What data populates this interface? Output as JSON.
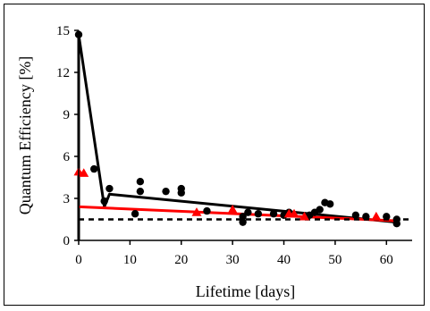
{
  "chart_data": {
    "type": "scatter",
    "xlabel": "Lifetime [days]",
    "ylabel": "Quantum Efficiency [%]",
    "xlim": [
      0,
      65
    ],
    "ylim": [
      0,
      15
    ],
    "xticks": [
      0,
      10,
      20,
      30,
      40,
      50,
      60
    ],
    "yticks": [
      0,
      3,
      6,
      9,
      12,
      15
    ],
    "grid": false,
    "legend": "none",
    "series": [
      {
        "marker": "circle",
        "color": "#000000",
        "points": [
          [
            0,
            14.7
          ],
          [
            3,
            5.1
          ],
          [
            5,
            2.8
          ],
          [
            6,
            3.7
          ],
          [
            11,
            1.9
          ],
          [
            12,
            4.2
          ],
          [
            12,
            3.5
          ],
          [
            17,
            3.5
          ],
          [
            20,
            3.7
          ],
          [
            20,
            3.4
          ],
          [
            25,
            2.1
          ],
          [
            32,
            1.7
          ],
          [
            32,
            1.3
          ],
          [
            33,
            2.0
          ],
          [
            35,
            1.9
          ],
          [
            38,
            1.9
          ],
          [
            40,
            1.8
          ],
          [
            41,
            2.0
          ],
          [
            45,
            1.8
          ],
          [
            46,
            2.0
          ],
          [
            47,
            2.2
          ],
          [
            48,
            2.7
          ],
          [
            49,
            2.6
          ],
          [
            54,
            1.8
          ],
          [
            56,
            1.7
          ],
          [
            60,
            1.7
          ],
          [
            62,
            1.5
          ],
          [
            62,
            1.2
          ]
        ]
      },
      {
        "marker": "triangle",
        "color": "#ff0000",
        "points": [
          [
            0,
            4.9
          ],
          [
            1,
            4.8
          ],
          [
            23,
            2.0
          ],
          [
            30,
            2.2
          ],
          [
            41,
            1.9
          ],
          [
            42,
            1.9
          ],
          [
            44,
            1.7
          ],
          [
            58,
            1.7
          ]
        ]
      }
    ],
    "lines": [
      {
        "style": "solid",
        "color": "#000000",
        "points": [
          [
            0,
            0
          ],
          [
            0,
            14.7
          ],
          [
            5,
            2.4
          ],
          [
            6,
            3.3
          ],
          [
            62,
            1.3
          ]
        ]
      },
      {
        "style": "solid",
        "color": "#ff0000",
        "points": [
          [
            0,
            2.4
          ],
          [
            62,
            1.4
          ]
        ]
      },
      {
        "style": "dashed",
        "color": "#000000",
        "points": [
          [
            0,
            1.5
          ],
          [
            65,
            1.5
          ]
        ]
      }
    ]
  }
}
